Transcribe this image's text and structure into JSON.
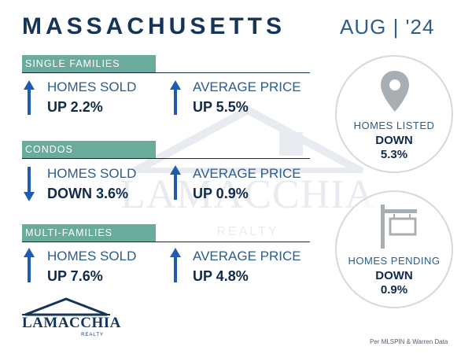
{
  "header": {
    "title": "MASSACHUSETTS",
    "date": "AUG | '24"
  },
  "watermark": {
    "text": "LAMACCHIA",
    "sub": "REALTY"
  },
  "sections": [
    {
      "name": "SINGLE FAMILIES",
      "stats": [
        {
          "label": "HOMES SOLD",
          "value": "UP 2.2%",
          "direction": "up"
        },
        {
          "label": "AVERAGE PRICE",
          "value": "UP 5.5%",
          "direction": "up"
        }
      ]
    },
    {
      "name": "CONDOS",
      "stats": [
        {
          "label": "HOMES SOLD",
          "value": "DOWN 3.6%",
          "direction": "down"
        },
        {
          "label": "AVERAGE PRICE",
          "value": "UP 0.9%",
          "direction": "up"
        }
      ]
    },
    {
      "name": "MULTI-FAMILIES",
      "stats": [
        {
          "label": "HOMES SOLD",
          "value": "UP 7.6%",
          "direction": "up"
        },
        {
          "label": "AVERAGE PRICE",
          "value": "UP 4.8%",
          "direction": "up"
        }
      ]
    }
  ],
  "circles": [
    {
      "label": "HOMES LISTED",
      "direction": "DOWN",
      "value": "5.3%",
      "icon": "map-pin-icon"
    },
    {
      "label": "HOMES PENDING",
      "direction": "DOWN",
      "value": "0.9%",
      "icon": "real-estate-sign-icon"
    }
  ],
  "logo": {
    "text": "LAMACCHIA",
    "sub": "REALTY"
  },
  "source": "Per MLSPIN & Warren Data",
  "colors": {
    "navy": "#14345a",
    "blue": "#2b5d8f",
    "teal_bar": "#6aab9c",
    "arrow": "#1f5bb0"
  }
}
